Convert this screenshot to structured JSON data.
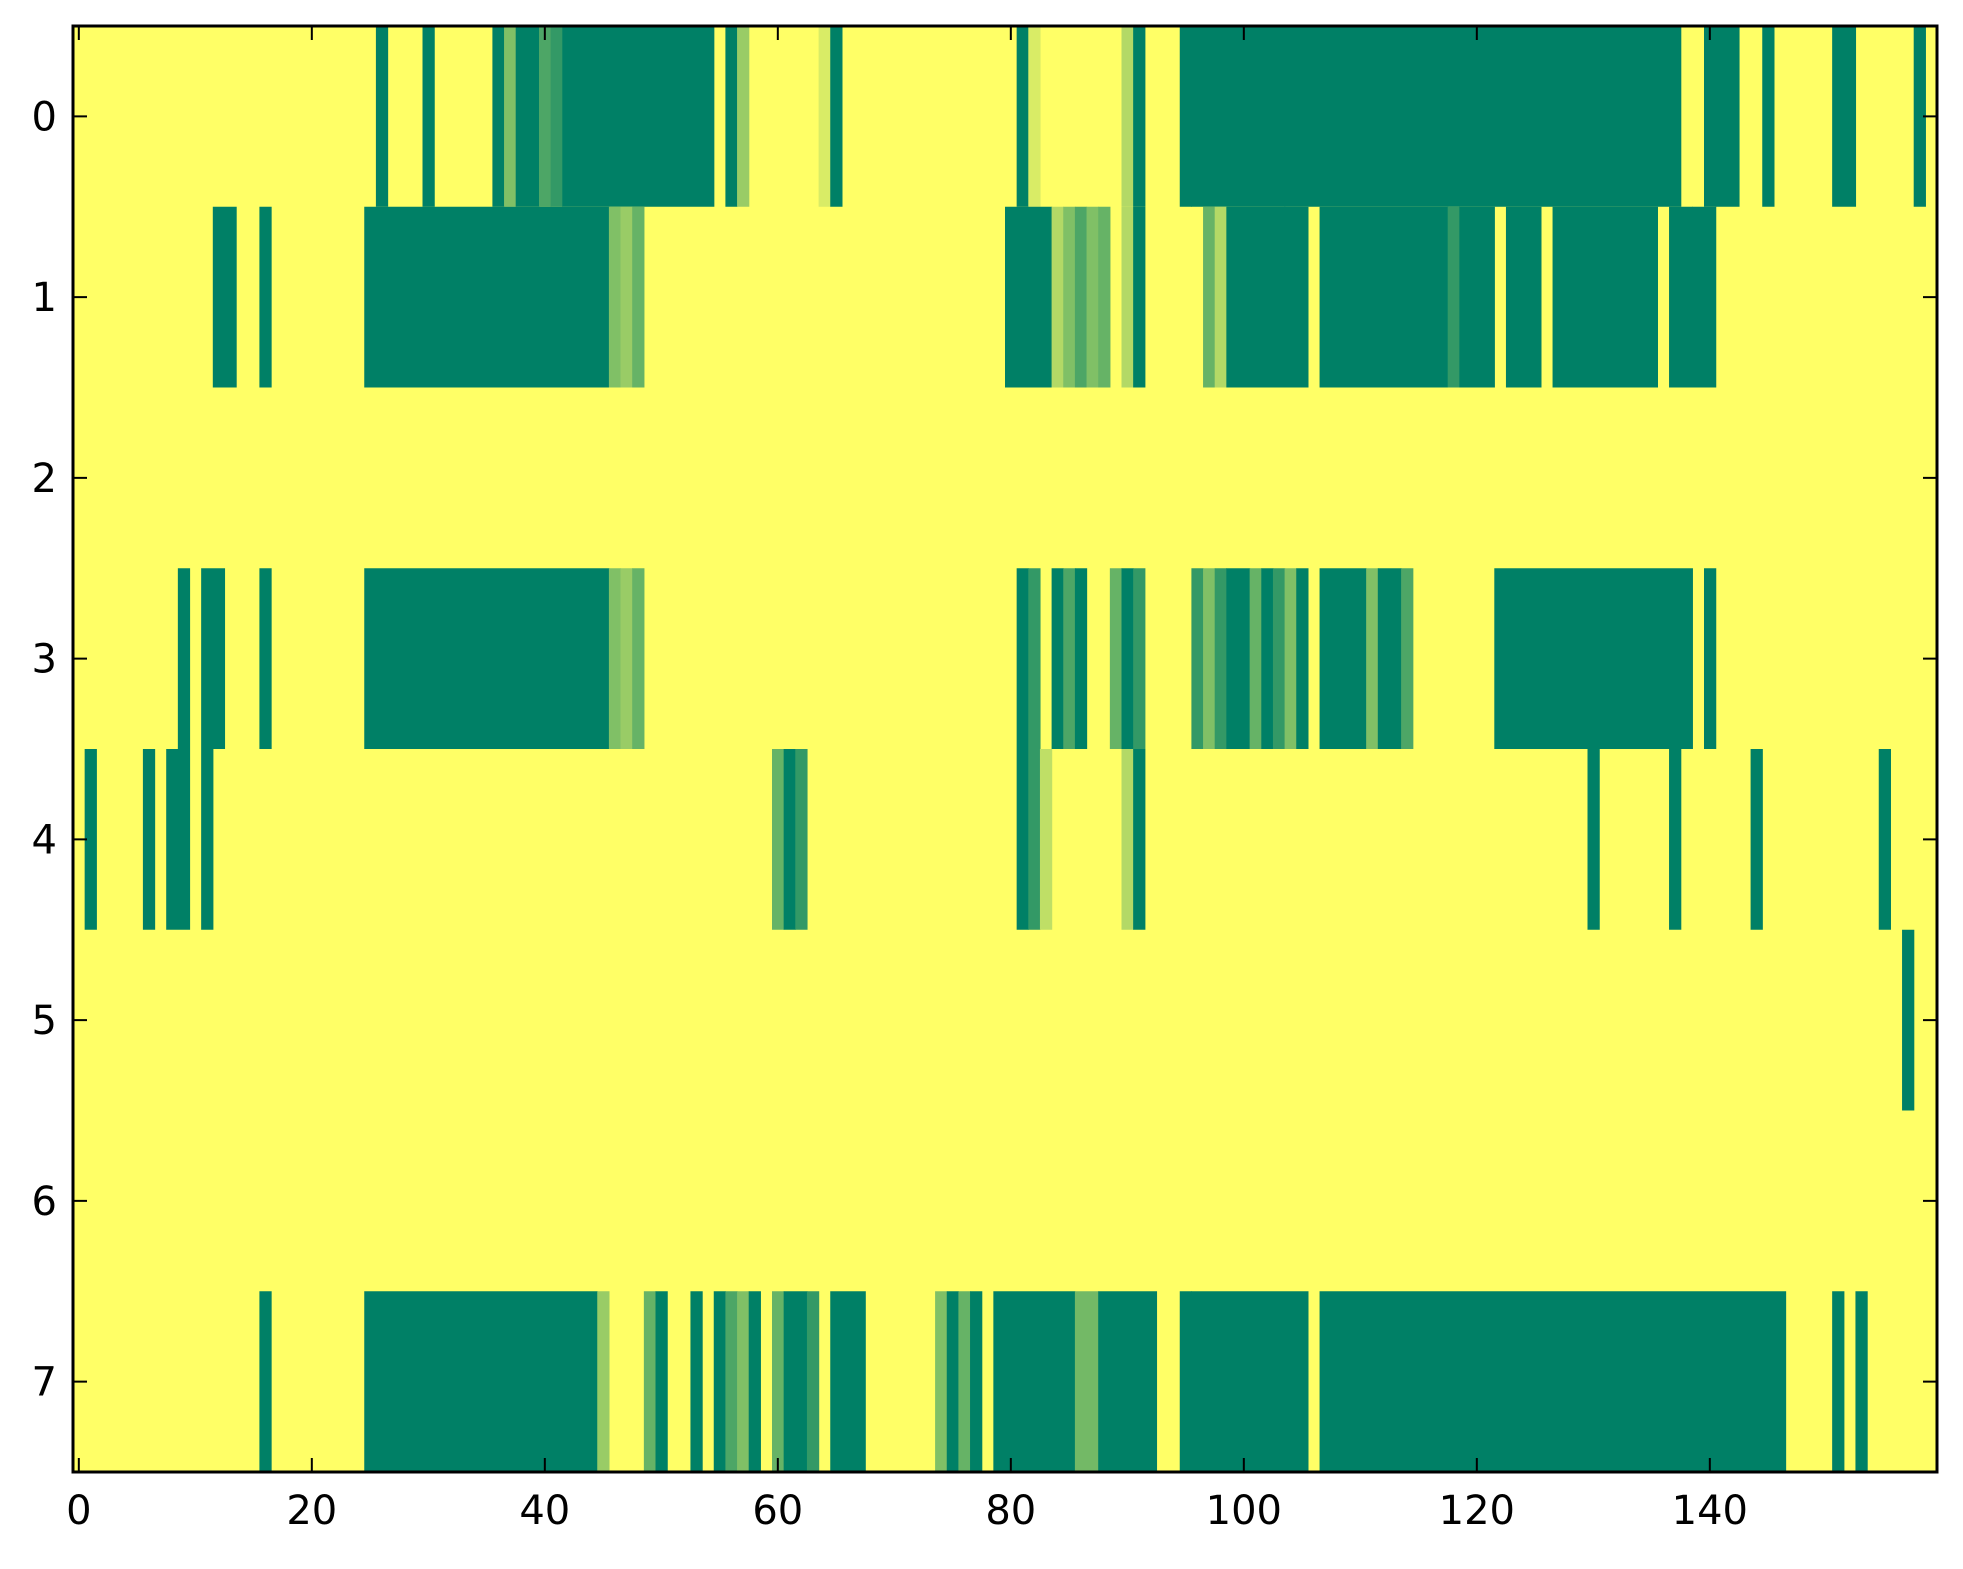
{
  "chart_data": {
    "type": "heatmap",
    "title": "",
    "xlabel": "",
    "ylabel": "",
    "xlim": [
      -0.5,
      159.5
    ],
    "ylim": [
      7.5,
      -0.5
    ],
    "x_ticks": [
      0,
      20,
      40,
      60,
      80,
      100,
      120,
      140
    ],
    "x_tick_labels": [
      "0",
      "20",
      "40",
      "60",
      "80",
      "100",
      "120",
      "140"
    ],
    "y_ticks": [
      0,
      1,
      2,
      3,
      4,
      5,
      6,
      7
    ],
    "y_tick_labels": [
      "0",
      "1",
      "2",
      "3",
      "4",
      "5",
      "6",
      "7"
    ],
    "grid": false,
    "legend": "none",
    "colormap": "summer_r",
    "colors": {
      "low": "#ffff66",
      "high": "#008066"
    },
    "n_columns": 160,
    "rows": [
      {
        "row": 0,
        "segments": [
          [
            26,
            27,
            1
          ],
          [
            30,
            31,
            1
          ],
          [
            36,
            37,
            1
          ],
          [
            37,
            38,
            0.5
          ],
          [
            38,
            40,
            1
          ],
          [
            40,
            41,
            0.7
          ],
          [
            41,
            42,
            0.8
          ],
          [
            42,
            55,
            1
          ],
          [
            56,
            57,
            1
          ],
          [
            57,
            58,
            0.4
          ],
          [
            64,
            65,
            0.15
          ],
          [
            65,
            66,
            1
          ],
          [
            81,
            82,
            1
          ],
          [
            82,
            83,
            0.15
          ],
          [
            90,
            91,
            0.3
          ],
          [
            91,
            92,
            1
          ],
          [
            95,
            96,
            1
          ],
          [
            96,
            138,
            1
          ],
          [
            140,
            141,
            1
          ],
          [
            141,
            143,
            1
          ],
          [
            145,
            146,
            1
          ],
          [
            151,
            153,
            1
          ],
          [
            158,
            159,
            1
          ]
        ]
      },
      {
        "row": 1,
        "segments": [
          [
            12,
            14,
            1
          ],
          [
            16,
            17,
            1
          ],
          [
            25,
            46,
            1
          ],
          [
            46,
            47,
            0.5
          ],
          [
            47,
            48,
            0.4
          ],
          [
            48,
            49,
            0.6
          ],
          [
            80,
            84,
            1
          ],
          [
            84,
            85,
            0.3
          ],
          [
            85,
            86,
            0.5
          ],
          [
            86,
            87,
            0.7
          ],
          [
            87,
            88,
            0.5
          ],
          [
            88,
            89,
            0.6
          ],
          [
            90,
            91,
            0.3
          ],
          [
            91,
            92,
            1
          ],
          [
            97,
            98,
            0.6
          ],
          [
            98,
            99,
            0.3
          ],
          [
            99,
            104,
            1
          ],
          [
            104,
            106,
            1
          ],
          [
            107,
            118,
            1
          ],
          [
            118,
            119,
            0.8
          ],
          [
            119,
            122,
            1
          ],
          [
            123,
            126,
            1
          ],
          [
            127,
            136,
            1
          ],
          [
            137,
            139,
            1
          ],
          [
            139,
            141,
            1
          ]
        ]
      },
      {
        "row": 2,
        "segments": []
      },
      {
        "row": 3,
        "segments": [
          [
            9,
            10,
            1
          ],
          [
            11,
            13,
            1
          ],
          [
            16,
            17,
            1
          ],
          [
            25,
            46,
            1
          ],
          [
            46,
            47,
            0.5
          ],
          [
            47,
            48,
            0.4
          ],
          [
            48,
            49,
            0.6
          ],
          [
            81,
            82,
            1
          ],
          [
            82,
            83,
            0.8
          ],
          [
            84,
            85,
            1
          ],
          [
            85,
            86,
            0.7
          ],
          [
            86,
            87,
            1
          ],
          [
            89,
            90,
            0.6
          ],
          [
            90,
            91,
            1
          ],
          [
            91,
            92,
            0.8
          ],
          [
            96,
            97,
            0.8
          ],
          [
            97,
            98,
            0.5
          ],
          [
            98,
            99,
            0.8
          ],
          [
            99,
            101,
            1
          ],
          [
            101,
            102,
            0.6
          ],
          [
            102,
            103,
            1
          ],
          [
            103,
            104,
            0.8
          ],
          [
            104,
            105,
            0.5
          ],
          [
            105,
            106,
            1
          ],
          [
            107,
            111,
            1
          ],
          [
            111,
            112,
            0.5
          ],
          [
            112,
            114,
            1
          ],
          [
            114,
            115,
            0.7
          ],
          [
            122,
            139,
            1
          ],
          [
            140,
            141,
            1
          ]
        ]
      },
      {
        "row": 4,
        "segments": [
          [
            1,
            2,
            1
          ],
          [
            6,
            7,
            1
          ],
          [
            8,
            10,
            1
          ],
          [
            11,
            12,
            1
          ],
          [
            60,
            61,
            0.6
          ],
          [
            61,
            62,
            1
          ],
          [
            62,
            63,
            0.8
          ],
          [
            81,
            82,
            1
          ],
          [
            82,
            83,
            0.8
          ],
          [
            83,
            84,
            0.25
          ],
          [
            90,
            91,
            0.3
          ],
          [
            91,
            92,
            1
          ],
          [
            130,
            131,
            1
          ],
          [
            137,
            138,
            1
          ],
          [
            144,
            145,
            1
          ],
          [
            155,
            156,
            1
          ]
        ]
      },
      {
        "row": 5,
        "segments": [
          [
            157,
            158,
            1
          ]
        ]
      },
      {
        "row": 6,
        "segments": []
      },
      {
        "row": 7,
        "segments": [
          [
            16,
            17,
            1
          ],
          [
            25,
            45,
            1
          ],
          [
            45,
            46,
            0.4
          ],
          [
            49,
            50,
            0.6
          ],
          [
            50,
            51,
            1
          ],
          [
            53,
            54,
            1
          ],
          [
            55,
            56,
            1
          ],
          [
            56,
            57,
            0.7
          ],
          [
            57,
            58,
            0.5
          ],
          [
            58,
            59,
            1
          ],
          [
            60,
            61,
            0.6
          ],
          [
            61,
            63,
            1
          ],
          [
            63,
            64,
            0.8
          ],
          [
            65,
            68,
            1
          ],
          [
            74,
            75,
            0.5
          ],
          [
            75,
            76,
            1
          ],
          [
            76,
            77,
            0.6
          ],
          [
            77,
            78,
            1
          ],
          [
            79,
            86,
            1
          ],
          [
            86,
            88,
            0.55
          ],
          [
            88,
            93,
            1
          ],
          [
            95,
            96,
            1
          ],
          [
            96,
            106,
            1
          ],
          [
            107,
            147,
            1
          ],
          [
            151,
            152,
            1
          ],
          [
            153,
            154,
            1
          ]
        ]
      }
    ]
  }
}
